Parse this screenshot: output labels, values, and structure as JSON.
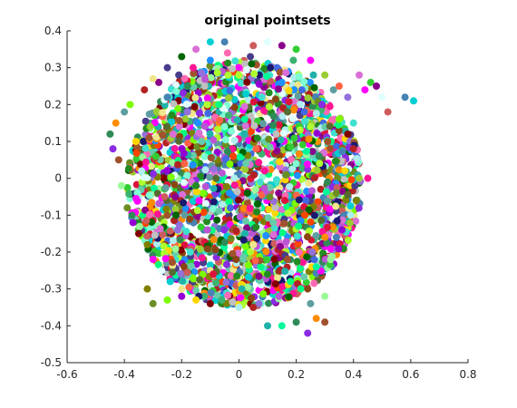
{
  "chart_data": {
    "type": "scatter",
    "title": "original pointsets",
    "xlabel": "",
    "ylabel": "",
    "xlim": [
      -0.6,
      0.8
    ],
    "ylim": [
      -0.5,
      0.4
    ],
    "xticks": [
      -0.6,
      -0.4,
      -0.2,
      0,
      0.2,
      0.4,
      0.6,
      0.8
    ],
    "yticks": [
      -0.5,
      -0.4,
      -0.3,
      -0.2,
      -0.1,
      0,
      0.1,
      0.2,
      0.3,
      0.4
    ],
    "xtick_labels": [
      "-0.6",
      "-0.4",
      "-0.2",
      "0",
      "0.2",
      "0.4",
      "0.6",
      "0.8"
    ],
    "ytick_labels": [
      "-0.5",
      "-0.4",
      "-0.3",
      "-0.2",
      "-0.1",
      "0",
      "0.1",
      "0.2",
      "0.3",
      "0.4"
    ],
    "grid": false,
    "box": "left-bottom",
    "palette": [
      "#2e8b57",
      "#7cfc00",
      "#9acd32",
      "#00ced1",
      "#40e0d0",
      "#1e90ff",
      "#4169e1",
      "#8a2be2",
      "#9400d3",
      "#ff00ff",
      "#da70d6",
      "#ff1493",
      "#dc143c",
      "#ff4500",
      "#ff8c00",
      "#ffd700",
      "#32cd32",
      "#006400",
      "#228b22",
      "#556b2f",
      "#8b4513",
      "#a0522d",
      "#800000",
      "#8b008b",
      "#483d8b",
      "#191970",
      "#00ff7f",
      "#adff2f",
      "#98fb98",
      "#afeeee",
      "#e0ffff",
      "#f0e68c",
      "#66cdaa",
      "#3cb371",
      "#20b2aa",
      "#5f9ea0",
      "#b22222",
      "#cd5c5c",
      "#ff6347",
      "#c0c0c0",
      "#7fffd4",
      "#00fa9a",
      "#6b8e23",
      "#808000",
      "#4682b4",
      "#9370db",
      "#ba55d3",
      "#ff69b4"
    ],
    "series": [
      {
        "points": [
          [
            -0.45,
            0.12
          ],
          [
            -0.44,
            0.08
          ],
          [
            -0.43,
            0.15
          ],
          [
            -0.42,
            0.05
          ],
          [
            -0.41,
            -0.02
          ],
          [
            -0.4,
            0.18
          ],
          [
            -0.39,
            -0.08
          ],
          [
            -0.38,
            0.2
          ],
          [
            -0.37,
            -0.12
          ],
          [
            -0.36,
            0.1
          ],
          [
            -0.35,
            -0.15
          ],
          [
            -0.34,
            0.02
          ],
          [
            -0.33,
            0.24
          ],
          [
            -0.32,
            -0.18
          ],
          [
            -0.31,
            0.14
          ],
          [
            -0.3,
            -0.22
          ],
          [
            -0.29,
            0.06
          ],
          [
            -0.28,
            0.26
          ],
          [
            -0.27,
            -0.25
          ],
          [
            -0.26,
            -0.05
          ],
          [
            -0.25,
            0.22
          ],
          [
            -0.24,
            -0.28
          ],
          [
            -0.23,
            0.12
          ],
          [
            -0.22,
            -0.1
          ],
          [
            -0.21,
            0.28
          ],
          [
            -0.2,
            -0.3
          ],
          [
            -0.19,
            0.04
          ],
          [
            -0.18,
            0.18
          ],
          [
            -0.17,
            -0.2
          ],
          [
            -0.16,
            0.3
          ],
          [
            -0.15,
            -0.02
          ],
          [
            -0.14,
            -0.32
          ],
          [
            -0.13,
            0.1
          ],
          [
            -0.12,
            0.25
          ],
          [
            -0.11,
            -0.14
          ],
          [
            -0.1,
            0.32
          ],
          [
            -0.09,
            -0.26
          ],
          [
            -0.08,
            0.0
          ],
          [
            -0.07,
            0.2
          ],
          [
            -0.06,
            -0.33
          ],
          [
            -0.05,
            0.14
          ],
          [
            -0.04,
            0.34
          ],
          [
            -0.03,
            -0.08
          ],
          [
            -0.02,
            0.06
          ],
          [
            -0.01,
            -0.22
          ],
          [
            0.0,
            0.28
          ],
          [
            0.01,
            -0.3
          ],
          [
            0.02,
            0.16
          ]
        ]
      },
      {
        "points": [
          [
            0.03,
            -0.04
          ],
          [
            0.04,
            0.33
          ],
          [
            0.05,
            -0.18
          ],
          [
            0.06,
            0.08
          ],
          [
            0.07,
            -0.34
          ],
          [
            0.08,
            0.22
          ],
          [
            0.09,
            0.02
          ],
          [
            0.1,
            -0.26
          ],
          [
            0.11,
            0.3
          ],
          [
            0.12,
            -0.12
          ],
          [
            0.13,
            0.12
          ],
          [
            0.14,
            -0.32
          ],
          [
            0.15,
            0.26
          ],
          [
            0.16,
            -0.06
          ],
          [
            0.17,
            0.18
          ],
          [
            0.18,
            -0.28
          ],
          [
            0.19,
            0.32
          ],
          [
            0.2,
            0.04
          ],
          [
            0.21,
            -0.2
          ],
          [
            0.22,
            0.24
          ],
          [
            0.23,
            -0.1
          ],
          [
            0.24,
            -0.3
          ],
          [
            0.25,
            0.14
          ],
          [
            0.26,
            0.28
          ],
          [
            0.27,
            -0.24
          ],
          [
            0.28,
            0.06
          ],
          [
            0.29,
            0.2
          ],
          [
            0.3,
            -0.16
          ],
          [
            0.31,
            0.1
          ],
          [
            0.32,
            -0.22
          ],
          [
            0.33,
            0.24
          ],
          [
            0.34,
            -0.04
          ],
          [
            0.35,
            0.16
          ],
          [
            0.36,
            -0.14
          ],
          [
            0.37,
            0.02
          ],
          [
            0.38,
            0.12
          ],
          [
            0.39,
            -0.1
          ],
          [
            0.4,
            0.08
          ],
          [
            0.41,
            -0.06
          ],
          [
            0.42,
            0.0
          ],
          [
            0.44,
            0.24
          ],
          [
            0.46,
            0.26
          ],
          [
            0.48,
            0.25
          ],
          [
            0.5,
            0.22
          ],
          [
            0.52,
            0.18
          ],
          [
            0.58,
            0.22
          ],
          [
            0.61,
            0.21
          ],
          [
            0.42,
            0.28
          ]
        ]
      },
      {
        "points": [
          [
            0.1,
            -0.4
          ],
          [
            0.15,
            -0.4
          ],
          [
            0.2,
            -0.39
          ],
          [
            0.24,
            -0.42
          ],
          [
            0.27,
            -0.38
          ],
          [
            0.3,
            -0.39
          ],
          [
            0.3,
            -0.32
          ],
          [
            0.25,
            -0.34
          ],
          [
            -0.3,
            -0.34
          ],
          [
            -0.25,
            -0.33
          ],
          [
            -0.2,
            -0.32
          ],
          [
            -0.15,
            -0.33
          ],
          [
            -0.1,
            -0.34
          ],
          [
            0.0,
            -0.35
          ],
          [
            0.05,
            -0.35
          ],
          [
            -0.32,
            -0.3
          ],
          [
            0.3,
            0.28
          ],
          [
            0.25,
            0.32
          ],
          [
            0.2,
            0.35
          ],
          [
            0.15,
            0.36
          ],
          [
            0.1,
            0.37
          ],
          [
            0.05,
            0.36
          ],
          [
            -0.05,
            0.37
          ],
          [
            -0.1,
            0.37
          ],
          [
            -0.15,
            0.35
          ],
          [
            -0.2,
            0.33
          ],
          [
            -0.25,
            0.3
          ],
          [
            -0.3,
            0.27
          ],
          [
            0.35,
            0.25
          ],
          [
            0.38,
            0.22
          ],
          [
            0.4,
            0.15
          ],
          [
            0.45,
            0.0
          ]
        ]
      }
    ]
  }
}
